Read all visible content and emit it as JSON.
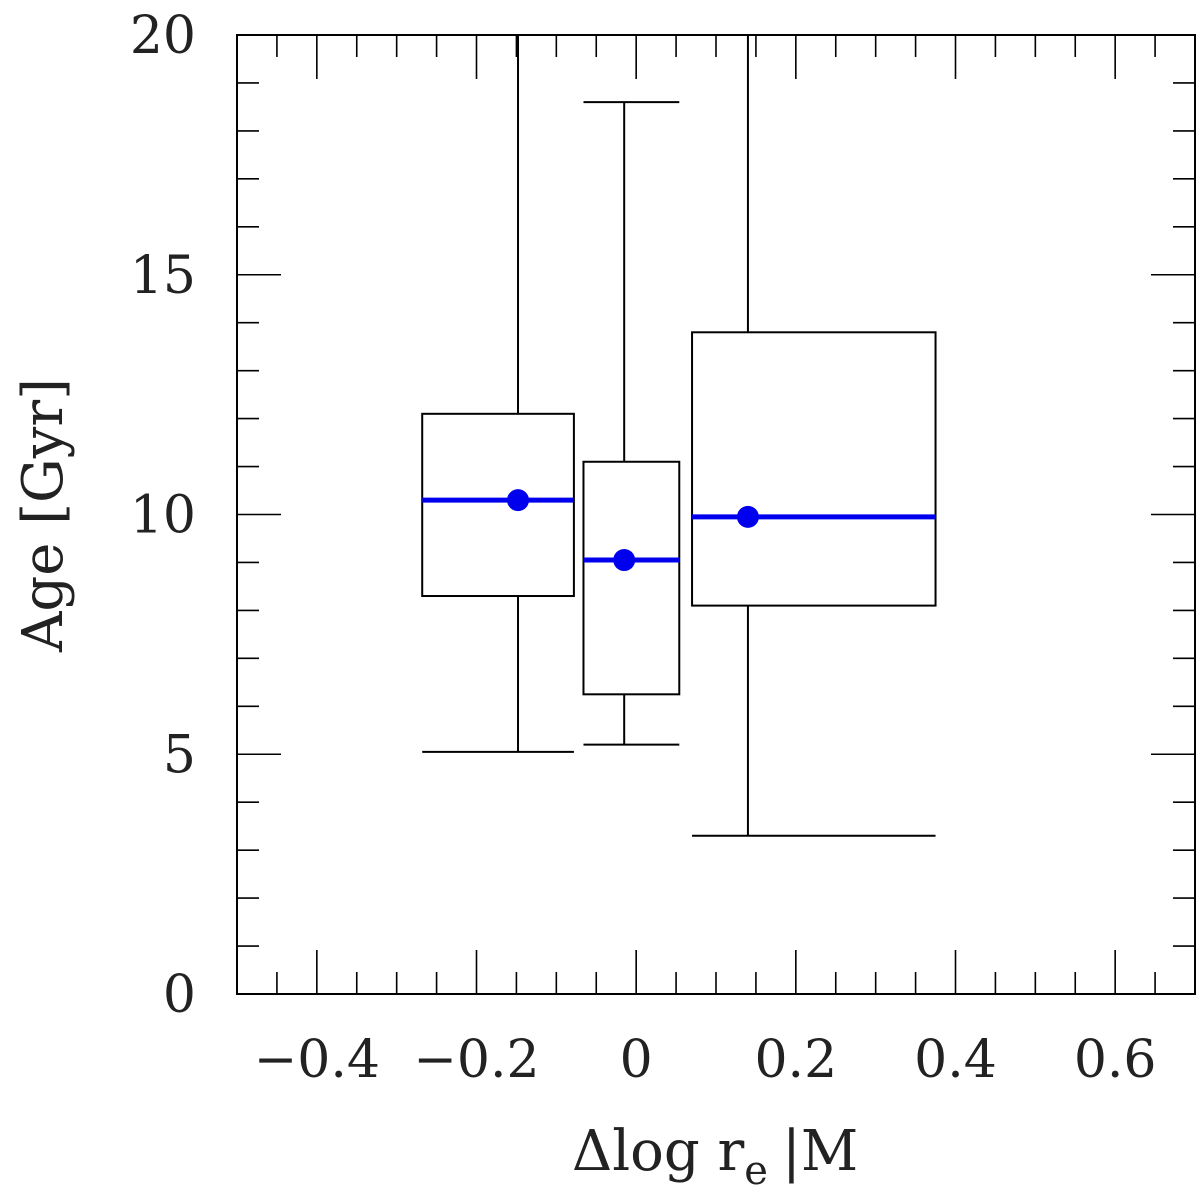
{
  "chart_data": {
    "type": "box",
    "xlabel": "Δlog r",
    "xlabel_sub": "e",
    "xlabel_tail": "|M",
    "ylabel": "Age [Gyr]",
    "xlim": [
      -0.5,
      0.7
    ],
    "ylim": [
      0,
      20
    ],
    "x_tick_labels": [
      {
        "value": -0.4,
        "label": "−0.4"
      },
      {
        "value": -0.2,
        "label": "−0.2"
      },
      {
        "value": 0,
        "label": "0"
      },
      {
        "value": 0.2,
        "label": "0.2"
      },
      {
        "value": 0.4,
        "label": "0.4"
      },
      {
        "value": 0.6,
        "label": "0.6"
      }
    ],
    "y_tick_labels": [
      {
        "value": 0,
        "label": "0"
      },
      {
        "value": 5,
        "label": "5"
      },
      {
        "value": 10,
        "label": "10"
      },
      {
        "value": 15,
        "label": "15"
      },
      {
        "value": 20,
        "label": "20"
      }
    ],
    "x_minor_step": 0.05,
    "y_minor_step": 1,
    "boxes": [
      {
        "x_left": -0.268,
        "x_right": -0.078,
        "x_center": -0.148,
        "q1": 8.3,
        "q3": 12.1,
        "median": 10.3,
        "mean": 10.3,
        "whisker_low": 5.05,
        "whisker_high": 20.0
      },
      {
        "x_left": -0.066,
        "x_right": 0.054,
        "x_center": -0.015,
        "q1": 6.25,
        "q3": 11.1,
        "median": 9.05,
        "mean": 9.05,
        "whisker_low": 5.2,
        "whisker_high": 18.6
      },
      {
        "x_left": 0.07,
        "x_right": 0.375,
        "x_center": 0.14,
        "q1": 8.1,
        "q3": 13.8,
        "median": 9.95,
        "mean": 9.95,
        "whisker_low": 3.3,
        "whisker_high": 20.0
      }
    ],
    "colors": {
      "median": "#0000ee",
      "frame": "#000000"
    }
  }
}
